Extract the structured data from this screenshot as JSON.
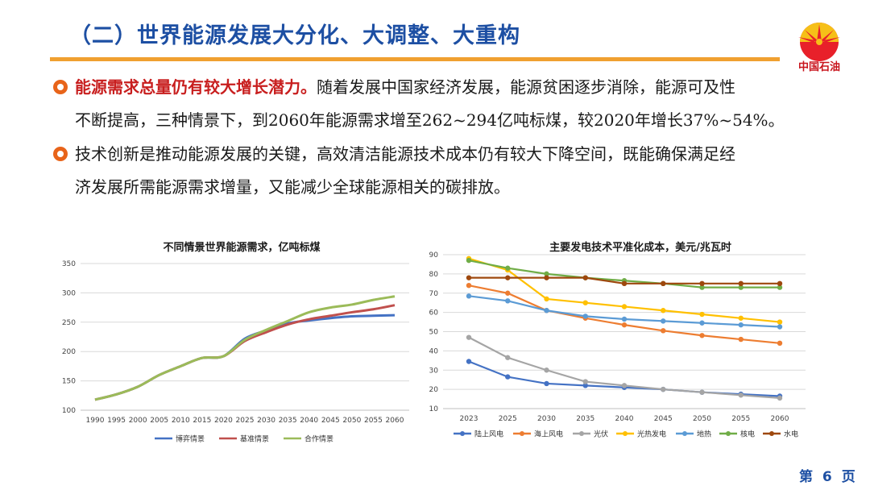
{
  "title": "（二）世界能源发展大分化、大调整、大重构",
  "logo_text": "中国石油",
  "bullets": [
    {
      "highlight": "能源需求总量仍有较大增长潜力。",
      "line1": "随着发展中国家经济发展，能源贫困逐步消除，能源可及性",
      "line2": "不断提高，三种情景下，到2060年能源需求增至262~294亿吨标煤，较2020年增长37%~54%。"
    },
    {
      "line1": "技术创新是推动能源发展的关键，高效清洁能源技术成本仍有较大下降空间，既能确保满足经",
      "line2": "济发展所需能源需求增量，又能减少全球能源相关的碳排放。"
    }
  ],
  "page": {
    "prefix": "第",
    "number": "6",
    "suffix": "页"
  },
  "chart_data": [
    {
      "type": "line",
      "title": "不同情景世界能源需求，亿吨标煤",
      "ylim": [
        100,
        350
      ],
      "yticks": [
        100,
        150,
        200,
        250,
        300,
        350
      ],
      "x": [
        1990,
        1995,
        2000,
        2005,
        2010,
        2015,
        2020,
        2025,
        2030,
        2035,
        2040,
        2045,
        2050,
        2055,
        2060
      ],
      "grid": true,
      "legend_position": "bottom",
      "series": [
        {
          "name": "博弈情景",
          "color": "#4472c4",
          "values": [
            118,
            127,
            140,
            160,
            175,
            189,
            192,
            222,
            236,
            248,
            253,
            257,
            260,
            261,
            262
          ]
        },
        {
          "name": "基准情景",
          "color": "#c0504d",
          "values": [
            118,
            127,
            140,
            160,
            175,
            189,
            192,
            218,
            233,
            246,
            255,
            261,
            267,
            272,
            279
          ]
        },
        {
          "name": "合作情景",
          "color": "#9bbb59",
          "values": [
            118,
            127,
            140,
            160,
            175,
            189,
            192,
            220,
            237,
            252,
            267,
            275,
            280,
            288,
            294
          ]
        }
      ]
    },
    {
      "type": "line",
      "title": "主要发电技术平准化成本，美元/兆瓦时",
      "ylim": [
        10,
        90
      ],
      "yticks": [
        10,
        20,
        30,
        40,
        50,
        60,
        70,
        80,
        90
      ],
      "x": [
        2023,
        2025,
        2030,
        2035,
        2040,
        2045,
        2050,
        2055,
        2060
      ],
      "grid": true,
      "legend_position": "bottom",
      "series": [
        {
          "name": "陆上风电",
          "color": "#4472c4",
          "values": [
            34.5,
            26.5,
            23,
            22,
            21,
            20,
            18.5,
            17.5,
            16.5
          ]
        },
        {
          "name": "海上风电",
          "color": "#ed7d31",
          "values": [
            74,
            70,
            61,
            57,
            53.5,
            50.5,
            48,
            46,
            44
          ]
        },
        {
          "name": "光伏",
          "color": "#a5a5a5",
          "values": [
            47,
            36.5,
            30,
            24,
            22,
            20,
            18.5,
            17,
            15.5
          ]
        },
        {
          "name": "光热发电",
          "color": "#ffc000",
          "values": [
            88,
            82,
            67,
            65,
            63,
            61,
            59,
            57,
            55
          ]
        },
        {
          "name": "地热",
          "color": "#5b9bd5",
          "values": [
            68.5,
            66,
            61,
            58,
            56.5,
            55.5,
            54.5,
            53.5,
            52.5
          ]
        },
        {
          "name": "核电",
          "color": "#70ad47",
          "values": [
            87,
            83,
            80,
            78,
            76.5,
            75,
            73,
            73,
            73
          ]
        },
        {
          "name": "水电",
          "color": "#9e480e",
          "values": [
            78,
            78,
            78,
            78,
            75,
            75,
            75,
            75,
            75
          ]
        }
      ]
    }
  ]
}
